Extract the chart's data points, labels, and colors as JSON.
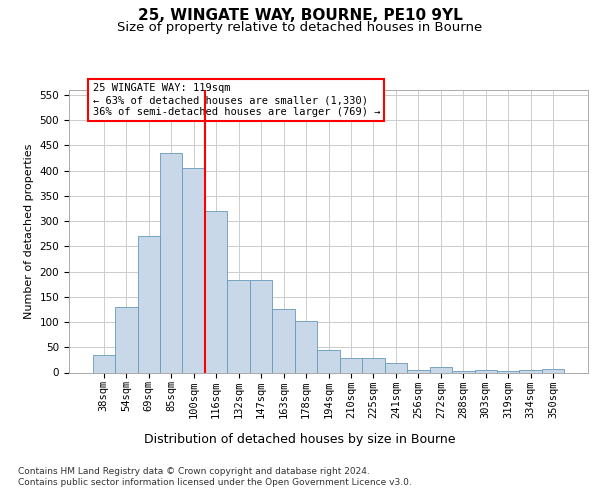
{
  "title": "25, WINGATE WAY, BOURNE, PE10 9YL",
  "subtitle": "Size of property relative to detached houses in Bourne",
  "xlabel": "Distribution of detached houses by size in Bourne",
  "ylabel": "Number of detached properties",
  "categories": [
    "38sqm",
    "54sqm",
    "69sqm",
    "85sqm",
    "100sqm",
    "116sqm",
    "132sqm",
    "147sqm",
    "163sqm",
    "178sqm",
    "194sqm",
    "210sqm",
    "225sqm",
    "241sqm",
    "256sqm",
    "272sqm",
    "288sqm",
    "303sqm",
    "319sqm",
    "334sqm",
    "350sqm"
  ],
  "values": [
    35,
    130,
    270,
    435,
    405,
    320,
    183,
    183,
    125,
    103,
    45,
    28,
    28,
    18,
    5,
    10,
    3,
    4,
    3,
    5,
    6
  ],
  "bar_color": "#c8d8e8",
  "bar_edge_color": "#6699bb",
  "vline_x_index": 4.5,
  "vline_color": "red",
  "annotation_text": "25 WINGATE WAY: 119sqm\n← 63% of detached houses are smaller (1,330)\n36% of semi-detached houses are larger (769) →",
  "annotation_box_color": "white",
  "annotation_box_edge_color": "red",
  "ylim": [
    0,
    560
  ],
  "yticks": [
    0,
    50,
    100,
    150,
    200,
    250,
    300,
    350,
    400,
    450,
    500,
    550
  ],
  "title_fontsize": 11,
  "subtitle_fontsize": 9.5,
  "xlabel_fontsize": 9,
  "ylabel_fontsize": 8,
  "tick_fontsize": 7.5,
  "annotation_fontsize": 7.5,
  "footer_text": "Contains HM Land Registry data © Crown copyright and database right 2024.\nContains public sector information licensed under the Open Government Licence v3.0.",
  "background_color": "#ffffff",
  "grid_color": "#cccccc"
}
